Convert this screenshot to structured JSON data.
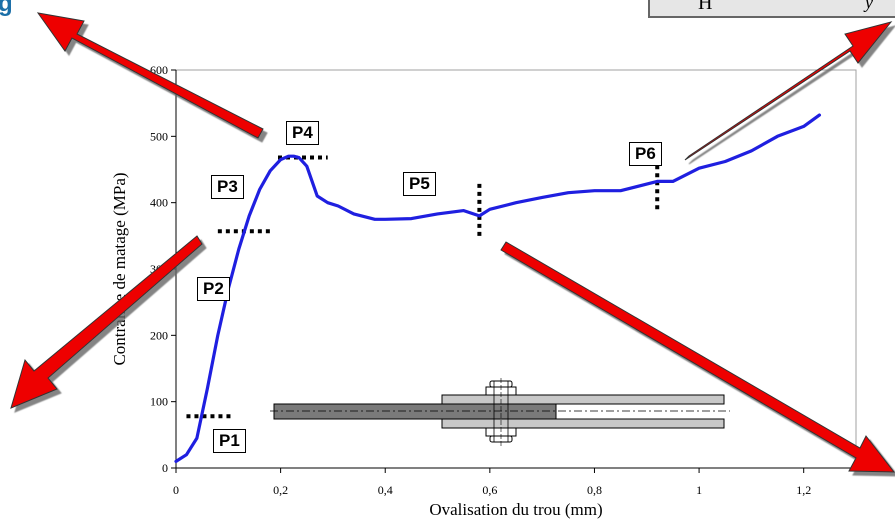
{
  "corner_text": "H",
  "corner_letter": "y",
  "top_left_glyph": "g",
  "chart_data": {
    "type": "line",
    "xlabel": "Ovalisation du trou (mm)",
    "ylabel": "Contrainte de matage (MPa)",
    "xlim": [
      0,
      1.3
    ],
    "ylim": [
      0,
      600
    ],
    "x_ticks": [
      0,
      0.2,
      0.4,
      0.6,
      0.8,
      1,
      1.2
    ],
    "x_tick_labels": [
      "0",
      "0,2",
      "0,4",
      "0,6",
      "0,8",
      "1",
      "1,2"
    ],
    "y_ticks": [
      0,
      100,
      200,
      300,
      400,
      500,
      600
    ],
    "y_tick_labels": [
      "0",
      "100",
      "200",
      "300",
      "400",
      "500",
      "600"
    ],
    "grid": false,
    "series_color": "#1f1fe0",
    "series": [
      {
        "x": [
          0.0,
          0.02,
          0.04,
          0.06,
          0.08,
          0.1,
          0.12,
          0.14,
          0.16,
          0.18,
          0.2,
          0.215,
          0.225,
          0.235,
          0.25,
          0.27,
          0.29,
          0.31,
          0.34,
          0.38,
          0.4,
          0.45,
          0.5,
          0.55,
          0.58,
          0.6,
          0.65,
          0.7,
          0.75,
          0.8,
          0.85,
          0.9,
          0.92,
          0.95,
          1.0,
          1.05,
          1.1,
          1.15,
          1.2,
          1.23
        ],
        "y": [
          10,
          20,
          45,
          120,
          200,
          270,
          330,
          380,
          420,
          448,
          465,
          470,
          470,
          468,
          455,
          410,
          400,
          395,
          383,
          375,
          375,
          376,
          383,
          388,
          380,
          390,
          400,
          408,
          415,
          418,
          418,
          428,
          432,
          432,
          452,
          462,
          478,
          500,
          515,
          532
        ]
      }
    ],
    "phases": [
      {
        "label": "P1",
        "y": 78,
        "x_from": 0.02,
        "x_to": 0.11
      },
      {
        "label": "P2",
        "x": 0.11,
        "y": 270
      },
      {
        "label": "P3",
        "y": 357,
        "x_from": 0.08,
        "x_to": 0.18
      },
      {
        "label": "P4",
        "y": 468,
        "x_from": 0.195,
        "x_to": 0.29
      },
      {
        "label": "P5",
        "x": 0.58,
        "y_from": 350,
        "y_to": 430
      },
      {
        "label": "P6",
        "x": 0.92,
        "y_from": 390,
        "y_to": 470
      }
    ],
    "arrow_color": "#ee0000"
  }
}
